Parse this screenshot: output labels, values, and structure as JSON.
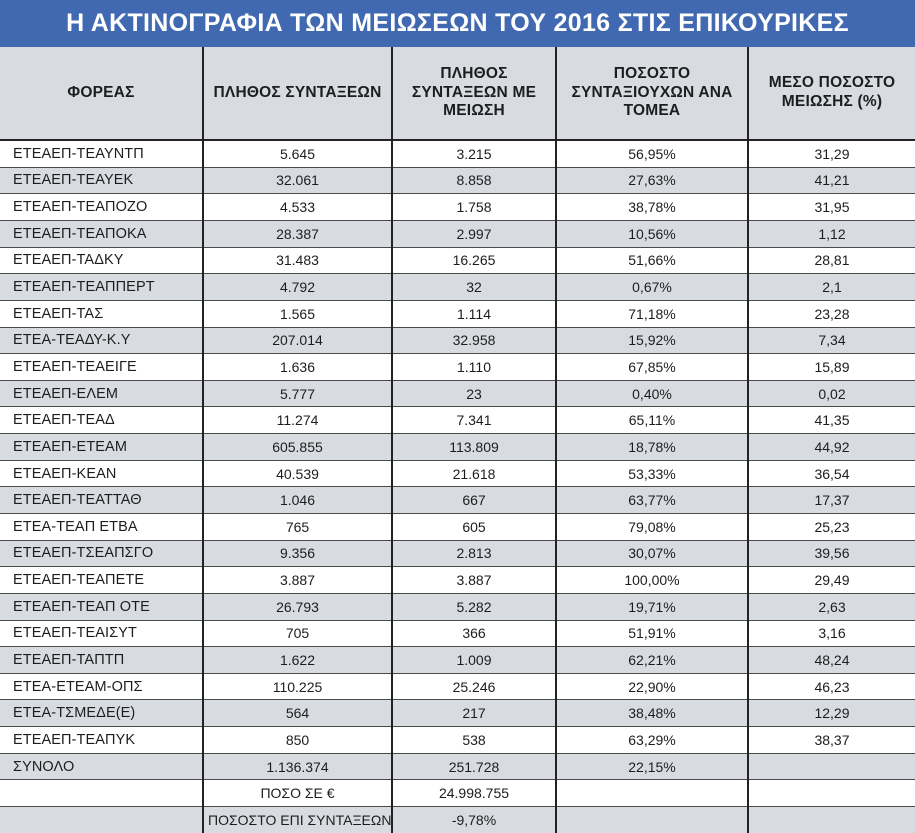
{
  "colors": {
    "title_bg": "#4169b1",
    "title_text": "#ffffff",
    "header_bg": "#d8dce0",
    "row_alt_bg": "#d8dce0",
    "row_bg": "#ffffff",
    "grid_dark": "#222222",
    "grid_light": "#4a4a4a",
    "text": "#1d1d1f"
  },
  "chart_data": {
    "type": "table",
    "title": "Η ΑΚΤΙΝΟΓΡΑΦΙΑ ΤΩΝ ΜΕΙΩΣΕΩΝ ΤΟΥ 2016 ΣΤΙΣ ΕΠΙΚΟΥΡΙΚΕΣ",
    "columns": [
      "ΦΟΡΕΑΣ",
      "ΠΛΗΘΟΣ ΣΥΝΤΑΞΕΩΝ",
      "ΠΛΗΘΟΣ ΣΥΝΤΑΞΕΩΝ ΜΕ ΜΕΙΩΣΗ",
      "ΠΟΣΟΣΤΟ ΣΥΝΤΑΞΙΟΥΧΩΝ ΑΝΑ ΤΟΜΕΑ",
      "ΜΕΣΟ ΠΟΣΟΣΤΟ ΜΕΙΩΣΗΣ (%)"
    ],
    "rows": [
      [
        "ΕΤΕΑΕΠ-ΤΕΑΥΝΤΠ",
        "5.645",
        "3.215",
        "56,95%",
        "31,29"
      ],
      [
        "ΕΤΕΑΕΠ-ΤΕΑΥΕΚ",
        "32.061",
        "8.858",
        "27,63%",
        "41,21"
      ],
      [
        "ΕΤΕΑΕΠ-ΤΕΑΠΟΖΟ",
        "4.533",
        "1.758",
        "38,78%",
        "31,95"
      ],
      [
        "ΕΤΕΑΕΠ-ΤΕΑΠΟΚΑ",
        "28.387",
        "2.997",
        "10,56%",
        "1,12"
      ],
      [
        "ΕΤΕΑΕΠ-ΤΑΔΚΥ",
        "31.483",
        "16.265",
        "51,66%",
        "28,81"
      ],
      [
        "ΕΤΕΑΕΠ-ΤΕΑΠΠΕΡΤ",
        "4.792",
        "32",
        "0,67%",
        "2,1"
      ],
      [
        "ΕΤΕΑΕΠ-ΤΑΣ",
        "1.565",
        "1.114",
        "71,18%",
        "23,28"
      ],
      [
        "ΕΤΕΑ-ΤΕΑΔΥ-Κ.Υ",
        "207.014",
        "32.958",
        "15,92%",
        "7,34"
      ],
      [
        "ΕΤΕΑΕΠ-ΤΕΑΕΙΓΕ",
        "1.636",
        "1.110",
        "67,85%",
        "15,89"
      ],
      [
        "ΕΤΕΑΕΠ-ΕΛΕΜ",
        "5.777",
        "23",
        "0,40%",
        "0,02"
      ],
      [
        "ΕΤΕΑΕΠ-ΤΕΑΔ",
        "11.274",
        "7.341",
        "65,11%",
        "41,35"
      ],
      [
        "ΕΤΕΑΕΠ-ΕΤΕΑΜ",
        "605.855",
        "113.809",
        "18,78%",
        "44,92"
      ],
      [
        "ΕΤΕΑΕΠ-ΚΕΑΝ",
        "40.539",
        "21.618",
        "53,33%",
        "36,54"
      ],
      [
        "ΕΤΕΑΕΠ-ΤΕΑΤΤΑΘ",
        "1.046",
        "667",
        "63,77%",
        "17,37"
      ],
      [
        "ΕΤΕΑ-ΤΕΑΠ ΕΤΒΑ",
        "765",
        "605",
        "79,08%",
        "25,23"
      ],
      [
        "ΕΤΕΑΕΠ-ΤΣΕΑΠΣΓΟ",
        "9.356",
        "2.813",
        "30,07%",
        "39,56"
      ],
      [
        "ΕΤΕΑΕΠ-ΤΕΑΠΕΤΕ",
        "3.887",
        "3.887",
        "100,00%",
        "29,49"
      ],
      [
        "ΕΤΕΑΕΠ-ΤΕΑΠ ΟΤΕ",
        "26.793",
        "5.282",
        "19,71%",
        "2,63"
      ],
      [
        "ΕΤΕΑΕΠ-ΤΕΑΙΣΥΤ",
        "705",
        "366",
        "51,91%",
        "3,16"
      ],
      [
        "ΕΤΕΑΕΠ-ΤΑΠΤΠ",
        "1.622",
        "1.009",
        "62,21%",
        "48,24"
      ],
      [
        "ΕΤΕΑ-ΕΤΕΑΜ-ΟΠΣ",
        "110.225",
        "25.246",
        "22,90%",
        "46,23"
      ],
      [
        "ΕΤΕΑ-ΤΣΜΕΔΕ(Ε)",
        "564",
        "217",
        "38,48%",
        "12,29"
      ],
      [
        "ΕΤΕΑΕΠ-ΤΕΑΠΥΚ",
        "850",
        "538",
        "63,29%",
        "38,37"
      ],
      [
        "ΣΥΝΟΛΟ",
        "1.136.374",
        "251.728",
        "22,15%",
        ""
      ],
      [
        "",
        "ΠΟΣΟ ΣΕ €",
        "24.998.755",
        "",
        ""
      ],
      [
        "",
        "ΠΟΣΟΣΤΟ ΕΠΙ ΣΥΝΤΑΞΕΩΝ",
        "-9,78%",
        "",
        ""
      ]
    ]
  }
}
